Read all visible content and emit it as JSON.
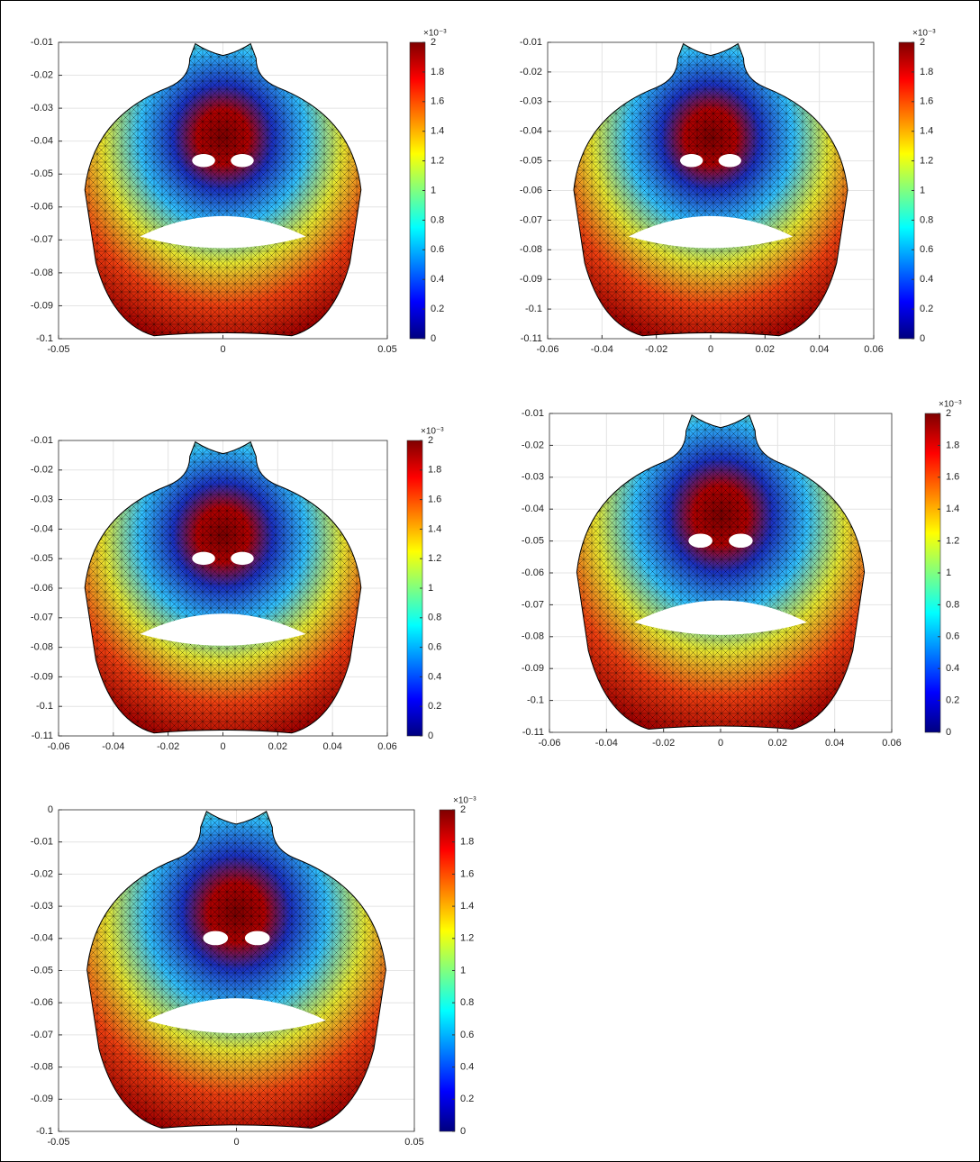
{
  "chart_data": [
    {
      "type": "surface",
      "xlim": [
        -0.05,
        0.05
      ],
      "xticks": [
        -0.05,
        0,
        0.05
      ],
      "ylim": [
        -0.1,
        -0.01
      ],
      "yticks": [
        -0.1,
        -0.09,
        -0.08,
        -0.07,
        -0.06,
        -0.05,
        -0.04,
        -0.03,
        -0.02,
        -0.01
      ],
      "grid": true,
      "clim": [
        0,
        2
      ],
      "cticks": [
        0,
        0.2,
        0.4,
        0.6,
        0.8,
        1,
        1.2,
        1.4,
        1.6,
        1.8,
        2
      ],
      "colorbar_label": "×10⁻³"
    },
    {
      "type": "surface",
      "xlim": [
        -0.06,
        0.06
      ],
      "xticks": [
        -0.06,
        -0.04,
        -0.02,
        0,
        0.02,
        0.04,
        0.06
      ],
      "ylim": [
        -0.11,
        -0.01
      ],
      "yticks": [
        -0.11,
        -0.1,
        -0.09,
        -0.08,
        -0.07,
        -0.06,
        -0.05,
        -0.04,
        -0.03,
        -0.02,
        -0.01
      ],
      "grid": true,
      "clim": [
        0,
        2
      ],
      "cticks": [
        0,
        0.2,
        0.4,
        0.6,
        0.8,
        1,
        1.2,
        1.4,
        1.6,
        1.8,
        2
      ],
      "colorbar_label": "×10⁻³"
    },
    {
      "type": "surface",
      "xlim": [
        -0.06,
        0.06
      ],
      "xticks": [
        -0.06,
        -0.04,
        -0.02,
        0,
        0.02,
        0.04,
        0.06
      ],
      "ylim": [
        -0.11,
        -0.01
      ],
      "yticks": [
        -0.11,
        -0.1,
        -0.09,
        -0.08,
        -0.07,
        -0.06,
        -0.05,
        -0.04,
        -0.03,
        -0.02,
        -0.01
      ],
      "grid": true,
      "clim": [
        0,
        2
      ],
      "cticks": [
        0,
        0.2,
        0.4,
        0.6,
        0.8,
        1,
        1.2,
        1.4,
        1.6,
        1.8,
        2
      ],
      "colorbar_label": "×10⁻³"
    },
    {
      "type": "surface",
      "xlim": [
        -0.06,
        0.06
      ],
      "xticks": [
        -0.06,
        -0.04,
        -0.02,
        0,
        0.02,
        0.04,
        0.06
      ],
      "ylim": [
        -0.11,
        -0.01
      ],
      "yticks": [
        -0.11,
        -0.1,
        -0.09,
        -0.08,
        -0.07,
        -0.06,
        -0.05,
        -0.04,
        -0.03,
        -0.02,
        -0.01
      ],
      "grid": true,
      "clim": [
        0,
        2
      ],
      "cticks": [
        0,
        0.2,
        0.4,
        0.6,
        0.8,
        1,
        1.2,
        1.4,
        1.6,
        1.8,
        2
      ],
      "colorbar_label": "×10⁻³"
    },
    {
      "type": "surface",
      "xlim": [
        -0.05,
        0.05
      ],
      "xticks": [
        -0.05,
        0,
        0.05
      ],
      "ylim": [
        -0.1,
        0
      ],
      "yticks": [
        -0.1,
        -0.09,
        -0.08,
        -0.07,
        -0.06,
        -0.05,
        -0.04,
        -0.03,
        -0.02,
        -0.01,
        0
      ],
      "grid": true,
      "clim": [
        0,
        2
      ],
      "cticks": [
        0,
        0.2,
        0.4,
        0.6,
        0.8,
        1,
        1.2,
        1.4,
        1.6,
        1.8,
        2
      ],
      "colorbar_label": "×10⁻³"
    }
  ]
}
